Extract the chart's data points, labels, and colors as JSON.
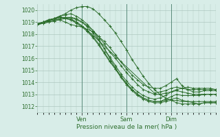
{
  "title": "",
  "xlabel": "Pression niveau de la mer( hPa )",
  "ylim": [
    1011.5,
    1020.5
  ],
  "xlim": [
    0,
    96
  ],
  "yticks": [
    1012,
    1013,
    1014,
    1015,
    1016,
    1017,
    1018,
    1019,
    1020
  ],
  "xtick_positions": [
    24,
    48,
    72
  ],
  "xtick_labels": [
    "Ven",
    "Sam",
    "Dim"
  ],
  "bg_color": "#d8ede8",
  "grid_color": "#aec8c0",
  "line_color": "#2d6e2d",
  "marker": "+",
  "series": [
    {
      "x": [
        0,
        3,
        6,
        9,
        12,
        15,
        18,
        21,
        24,
        27,
        30,
        33,
        36,
        39,
        42,
        45,
        48,
        51,
        54,
        57,
        60,
        63,
        66,
        69,
        72,
        75,
        78,
        81,
        84,
        87,
        90,
        93,
        96
      ],
      "y": [
        1018.8,
        1018.9,
        1019.0,
        1019.1,
        1019.2,
        1019.3,
        1019.4,
        1019.2,
        1019.0,
        1018.7,
        1018.3,
        1017.8,
        1017.2,
        1016.5,
        1016.0,
        1015.4,
        1014.8,
        1014.3,
        1013.8,
        1013.4,
        1013.2,
        1013.0,
        1013.0,
        1013.1,
        1013.2,
        1013.3,
        1013.2,
        1013.1,
        1013.0,
        1013.0,
        1013.0,
        1013.0,
        1013.0
      ]
    },
    {
      "x": [
        0,
        3,
        6,
        9,
        12,
        15,
        18,
        21,
        24,
        27,
        30,
        33,
        36,
        39,
        42,
        45,
        48,
        51,
        54,
        57,
        60,
        63,
        66,
        69,
        72,
        75,
        78,
        81,
        84,
        87,
        90,
        93,
        96
      ],
      "y": [
        1018.8,
        1019.0,
        1019.1,
        1019.3,
        1019.5,
        1019.6,
        1019.7,
        1019.5,
        1019.2,
        1018.8,
        1018.3,
        1017.6,
        1016.8,
        1016.0,
        1015.2,
        1014.5,
        1013.9,
        1013.4,
        1013.0,
        1012.7,
        1012.5,
        1012.4,
        1012.4,
        1012.5,
        1012.6,
        1012.7,
        1012.5,
        1012.4,
        1012.3,
        1012.2,
        1012.3,
        1012.3,
        1012.3
      ]
    },
    {
      "x": [
        0,
        3,
        6,
        9,
        12,
        15,
        18,
        21,
        24,
        27,
        30,
        33,
        36,
        39,
        42,
        45,
        48,
        51,
        54,
        57,
        60,
        63,
        66,
        69,
        72,
        75,
        78,
        81,
        84,
        87,
        90,
        93,
        96
      ],
      "y": [
        1018.9,
        1019.0,
        1019.2,
        1019.3,
        1019.4,
        1019.3,
        1019.2,
        1019.0,
        1018.7,
        1018.3,
        1017.8,
        1017.2,
        1016.5,
        1015.8,
        1015.1,
        1014.4,
        1013.8,
        1013.3,
        1012.9,
        1012.6,
        1012.4,
        1012.3,
        1012.3,
        1012.4,
        1012.5,
        1012.5,
        1012.4,
        1012.4,
        1012.4,
        1012.4,
        1012.4,
        1012.4,
        1012.4
      ]
    },
    {
      "x": [
        0,
        3,
        6,
        9,
        12,
        15,
        18,
        21,
        24,
        27,
        30,
        33,
        36,
        39,
        42,
        45,
        48,
        51,
        54,
        57,
        60,
        63,
        66,
        69,
        72,
        75,
        78,
        81,
        84,
        87,
        90,
        93,
        96
      ],
      "y": [
        1018.8,
        1019.0,
        1019.1,
        1019.2,
        1019.4,
        1019.3,
        1019.2,
        1018.9,
        1018.6,
        1018.2,
        1017.7,
        1017.1,
        1016.4,
        1015.7,
        1015.1,
        1014.5,
        1013.9,
        1013.4,
        1013.0,
        1012.7,
        1012.5,
        1012.4,
        1012.4,
        1012.6,
        1012.8,
        1013.0,
        1012.9,
        1012.9,
        1012.9,
        1012.9,
        1013.0,
        1013.0,
        1013.0
      ]
    },
    {
      "x": [
        0,
        3,
        6,
        9,
        12,
        15,
        18,
        21,
        24,
        27,
        30,
        33,
        36,
        39,
        42,
        45,
        48,
        51,
        54,
        57,
        60,
        63,
        66,
        69,
        72,
        75,
        78,
        81,
        84,
        87,
        90,
        93,
        96
      ],
      "y": [
        1018.8,
        1019.0,
        1019.1,
        1019.3,
        1019.5,
        1019.7,
        1020.0,
        1020.2,
        1020.3,
        1020.3,
        1020.1,
        1019.7,
        1019.2,
        1018.7,
        1018.1,
        1017.4,
        1016.7,
        1015.9,
        1015.2,
        1014.5,
        1013.9,
        1013.4,
        1013.0,
        1012.7,
        1012.5,
        1012.3,
        1012.2,
        1012.2,
        1012.2,
        1012.2,
        1012.3,
        1012.3,
        1012.3
      ]
    },
    {
      "x": [
        0,
        3,
        6,
        9,
        12,
        15,
        18,
        21,
        24,
        27,
        30,
        33,
        36,
        39,
        42,
        45,
        48,
        51,
        54,
        57,
        60,
        63,
        66,
        69,
        72,
        75,
        78,
        81,
        84,
        87,
        90,
        93,
        96
      ],
      "y": [
        1018.8,
        1018.9,
        1019.0,
        1019.1,
        1019.3,
        1019.4,
        1019.4,
        1019.3,
        1019.0,
        1018.6,
        1018.1,
        1017.5,
        1016.8,
        1016.1,
        1015.4,
        1014.7,
        1014.1,
        1013.6,
        1013.2,
        1012.9,
        1012.7,
        1012.6,
        1012.7,
        1012.9,
        1013.2,
        1013.4,
        1013.5,
        1013.6,
        1013.5,
        1013.5,
        1013.5,
        1013.5,
        1013.4
      ]
    },
    {
      "x": [
        0,
        3,
        6,
        9,
        12,
        15,
        18,
        21,
        24,
        27,
        30,
        33,
        36,
        39,
        42,
        45,
        48,
        51,
        54,
        57,
        60,
        63,
        66,
        69,
        72,
        75,
        78,
        81,
        84,
        87,
        90,
        93,
        96
      ],
      "y": [
        1018.8,
        1019.0,
        1019.1,
        1019.2,
        1019.2,
        1019.0,
        1018.8,
        1018.7,
        1018.6,
        1018.4,
        1018.2,
        1017.8,
        1017.4,
        1016.9,
        1016.3,
        1015.7,
        1015.1,
        1014.6,
        1014.2,
        1013.8,
        1013.6,
        1013.5,
        1013.5,
        1013.7,
        1014.0,
        1014.3,
        1013.7,
        1013.4,
        1013.2,
        1013.2,
        1013.3,
        1013.3,
        1013.3
      ]
    },
    {
      "x": [
        0,
        3,
        6,
        9,
        12,
        15,
        18,
        21,
        24,
        27,
        30,
        63,
        66,
        69,
        72,
        75,
        78,
        81,
        84,
        87,
        90,
        93,
        96
      ],
      "y": [
        1018.8,
        1019.0,
        1019.2,
        1019.3,
        1019.4,
        1019.4,
        1019.3,
        1019.0,
        1018.7,
        1018.3,
        1017.9,
        1013.1,
        1013.2,
        1013.3,
        1013.5,
        1013.6,
        1013.5,
        1013.4,
        1013.4,
        1013.4,
        1013.4,
        1013.4,
        1013.4
      ]
    }
  ]
}
